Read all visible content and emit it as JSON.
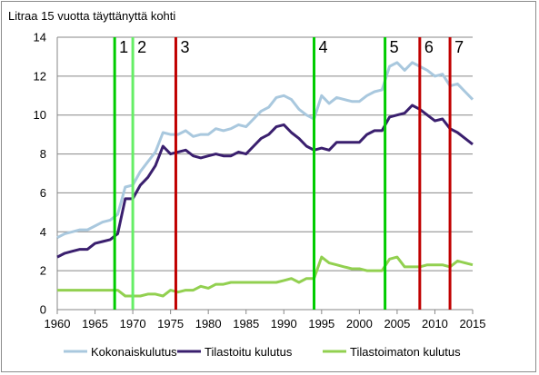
{
  "chart_data": {
    "type": "line",
    "title": "Litraa 15 vuotta täyttänyttä kohti",
    "xlim": [
      1960,
      2015
    ],
    "ylim": [
      0,
      14
    ],
    "x_ticks": [
      "1960",
      "1965",
      "1970",
      "1975",
      "1980",
      "1985",
      "1990",
      "1995",
      "2000",
      "2005",
      "2010",
      "2015"
    ],
    "y_ticks": [
      "0",
      "2",
      "4",
      "6",
      "8",
      "10",
      "12",
      "14"
    ],
    "grid": true,
    "legend_position": "bottom",
    "series": [
      {
        "name": "Kokonaiskulutus",
        "color": "#a9c8de",
        "x": [
          1960,
          1961,
          1962,
          1963,
          1964,
          1965,
          1966,
          1967,
          1968,
          1969,
          1970,
          1971,
          1972,
          1973,
          1974,
          1975,
          1976,
          1977,
          1978,
          1979,
          1980,
          1981,
          1982,
          1983,
          1984,
          1985,
          1986,
          1987,
          1988,
          1989,
          1990,
          1991,
          1992,
          1993,
          1994,
          1995,
          1996,
          1997,
          1998,
          1999,
          2000,
          2001,
          2002,
          2003,
          2004,
          2005,
          2006,
          2007,
          2008,
          2009,
          2010,
          2011,
          2012,
          2013,
          2014,
          2015
        ],
        "y": [
          3.7,
          3.9,
          4.0,
          4.1,
          4.1,
          4.3,
          4.5,
          4.6,
          4.9,
          6.3,
          6.4,
          7.1,
          7.6,
          8.1,
          9.1,
          9.0,
          9.0,
          9.2,
          8.9,
          9.0,
          9.0,
          9.3,
          9.2,
          9.3,
          9.5,
          9.4,
          9.8,
          10.2,
          10.4,
          10.9,
          11.0,
          10.8,
          10.3,
          10.0,
          9.8,
          11.0,
          10.6,
          10.9,
          10.8,
          10.7,
          10.7,
          11.0,
          11.2,
          11.3,
          12.5,
          12.7,
          12.3,
          12.7,
          12.5,
          12.3,
          12.0,
          12.1,
          11.5,
          11.6,
          11.2,
          10.8
        ]
      },
      {
        "name": "Tilastoitu kulutus",
        "color": "#3a1f6e",
        "x": [
          1960,
          1961,
          1962,
          1963,
          1964,
          1965,
          1966,
          1967,
          1968,
          1969,
          1970,
          1971,
          1972,
          1973,
          1974,
          1975,
          1976,
          1977,
          1978,
          1979,
          1980,
          1981,
          1982,
          1983,
          1984,
          1985,
          1986,
          1987,
          1988,
          1989,
          1990,
          1991,
          1992,
          1993,
          1994,
          1995,
          1996,
          1997,
          1998,
          1999,
          2000,
          2001,
          2002,
          2003,
          2004,
          2005,
          2006,
          2007,
          2008,
          2009,
          2010,
          2011,
          2012,
          2013,
          2014,
          2015
        ],
        "y": [
          2.7,
          2.9,
          3.0,
          3.1,
          3.1,
          3.4,
          3.5,
          3.6,
          3.9,
          5.7,
          5.7,
          6.4,
          6.8,
          7.4,
          8.4,
          8.0,
          8.1,
          8.2,
          7.9,
          7.8,
          7.9,
          8.0,
          7.9,
          7.9,
          8.1,
          8.0,
          8.4,
          8.8,
          9.0,
          9.4,
          9.5,
          9.1,
          8.8,
          8.4,
          8.2,
          8.3,
          8.2,
          8.6,
          8.6,
          8.6,
          8.6,
          9.0,
          9.2,
          9.2,
          9.9,
          10.0,
          10.1,
          10.5,
          10.3,
          10.0,
          9.7,
          9.8,
          9.3,
          9.1,
          8.8,
          8.5
        ]
      },
      {
        "name": "Tilastoimaton kulutus",
        "color": "#92d050",
        "x": [
          1960,
          1961,
          1962,
          1963,
          1964,
          1965,
          1966,
          1967,
          1968,
          1969,
          1970,
          1971,
          1972,
          1973,
          1974,
          1975,
          1976,
          1977,
          1978,
          1979,
          1980,
          1981,
          1982,
          1983,
          1984,
          1985,
          1986,
          1987,
          1988,
          1989,
          1990,
          1991,
          1992,
          1993,
          1994,
          1995,
          1996,
          1997,
          1998,
          1999,
          2000,
          2001,
          2002,
          2003,
          2004,
          2005,
          2006,
          2007,
          2008,
          2009,
          2010,
          2011,
          2012,
          2013,
          2014,
          2015
        ],
        "y": [
          1.0,
          1.0,
          1.0,
          1.0,
          1.0,
          1.0,
          1.0,
          1.0,
          1.0,
          0.7,
          0.7,
          0.7,
          0.8,
          0.8,
          0.7,
          1.0,
          0.9,
          1.0,
          1.0,
          1.2,
          1.1,
          1.3,
          1.3,
          1.4,
          1.4,
          1.4,
          1.4,
          1.4,
          1.4,
          1.4,
          1.5,
          1.6,
          1.4,
          1.6,
          1.6,
          2.7,
          2.4,
          2.3,
          2.2,
          2.1,
          2.1,
          2.0,
          2.0,
          2.0,
          2.6,
          2.7,
          2.2,
          2.2,
          2.2,
          2.3,
          2.3,
          2.3,
          2.2,
          2.5,
          2.4,
          2.3
        ]
      }
    ],
    "markers": [
      {
        "label": "1",
        "x": 1967.6,
        "color": "#00cc00"
      },
      {
        "label": "2",
        "x": 1970.0,
        "color": "#66ee66"
      },
      {
        "label": "3",
        "x": 1975.7,
        "color": "#c00000"
      },
      {
        "label": "4",
        "x": 1994.0,
        "color": "#00cc00"
      },
      {
        "label": "5",
        "x": 2003.4,
        "color": "#00cc00"
      },
      {
        "label": "6",
        "x": 2008.0,
        "color": "#c00000"
      },
      {
        "label": "7",
        "x": 2012.0,
        "color": "#c00000"
      }
    ]
  }
}
